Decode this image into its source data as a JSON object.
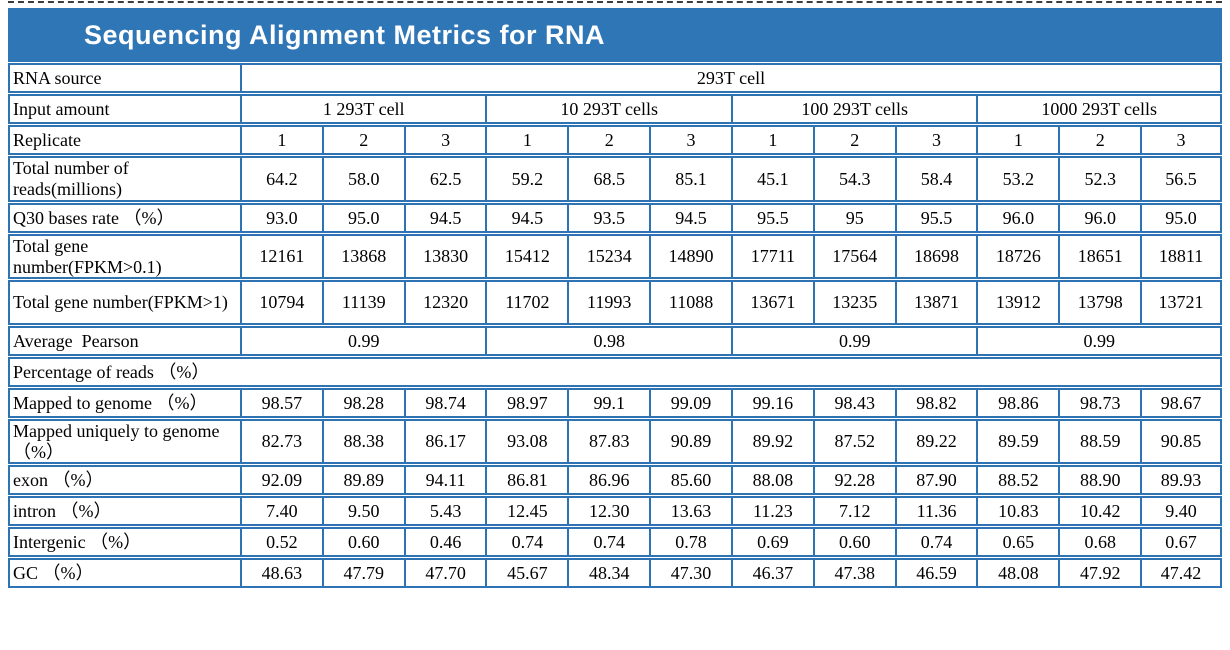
{
  "header": {
    "title": "Sequencing Alignment Metrics for RNA"
  },
  "colors": {
    "header_bg": "#2f76b6",
    "border": "#2e74b5",
    "title_text": "#ffffff",
    "body_text": "#000000"
  },
  "meta_rows": {
    "rna_source": {
      "label": "RNA source",
      "value": "293T cell"
    },
    "input_amount": {
      "label": "Input amount",
      "groups": [
        "1 293T cell",
        "10 293T cells",
        "100 293T cells",
        "1000 293T cells"
      ]
    },
    "replicate": {
      "label": "Replicate",
      "values": [
        "1",
        "2",
        "3",
        "1",
        "2",
        "3",
        "1",
        "2",
        "3",
        "1",
        "2",
        "3"
      ]
    }
  },
  "metric_rows": [
    {
      "label": "Total number of reads(millions)",
      "values": [
        "64.2",
        "58.0",
        "62.5",
        "59.2",
        "68.5",
        "85.1",
        "45.1",
        "54.3",
        "58.4",
        "53.2",
        "52.3",
        "56.5"
      ]
    },
    {
      "label": "Q30 bases rate （%）",
      "values": [
        "93.0",
        "95.0",
        "94.5",
        "94.5",
        "93.5",
        "94.5",
        "95.5",
        "95",
        "95.5",
        "96.0",
        "96.0",
        "95.0"
      ]
    },
    {
      "label": "Total gene number(FPKM>0.1)",
      "values": [
        "12161",
        "13868",
        "13830",
        "15412",
        "15234",
        "14890",
        "17711",
        "17564",
        "18698",
        "18726",
        "18651",
        "18811"
      ]
    },
    {
      "label": "Total gene number(FPKM>1)",
      "values": [
        "10794",
        "11139",
        "12320",
        "11702",
        "11993",
        "11088",
        "13671",
        "13235",
        "13871",
        "13912",
        "13798",
        "13721"
      ]
    }
  ],
  "pearson": {
    "label": "Average  Pearson",
    "values": [
      "0.99",
      "0.98",
      "0.99",
      "0.99"
    ]
  },
  "section": {
    "label": "Percentage of reads （%）"
  },
  "percentage_rows": [
    {
      "label": "Mapped to genome （%）",
      "values": [
        "98.57",
        "98.28",
        "98.74",
        "98.97",
        "99.1",
        "99.09",
        "99.16",
        "98.43",
        "98.82",
        "98.86",
        "98.73",
        "98.67"
      ]
    },
    {
      "label": "Mapped uniquely to genome （%）",
      "values": [
        "82.73",
        "88.38",
        "86.17",
        "93.08",
        "87.83",
        "90.89",
        "89.92",
        "87.52",
        "89.22",
        "89.59",
        "88.59",
        "90.85"
      ]
    },
    {
      "label": "exon （%）",
      "values": [
        "92.09",
        "89.89",
        "94.11",
        "86.81",
        "86.96",
        "85.60",
        "88.08",
        "92.28",
        "87.90",
        "88.52",
        "88.90",
        "89.93"
      ]
    },
    {
      "label": "intron （%）",
      "values": [
        "7.40",
        "9.50",
        "5.43",
        "12.45",
        "12.30",
        "13.63",
        "11.23",
        "7.12",
        "11.36",
        "10.83",
        "10.42",
        "9.40"
      ]
    },
    {
      "label": "Intergenic （%）",
      "values": [
        "0.52",
        "0.60",
        "0.46",
        "0.74",
        "0.74",
        "0.78",
        "0.69",
        "0.60",
        "0.74",
        "0.65",
        "0.68",
        "0.67"
      ]
    },
    {
      "label": "GC （%）",
      "values": [
        "48.63",
        "47.79",
        "47.70",
        "45.67",
        "48.34",
        "47.30",
        "46.37",
        "47.38",
        "46.59",
        "48.08",
        "47.92",
        "47.42"
      ]
    }
  ]
}
